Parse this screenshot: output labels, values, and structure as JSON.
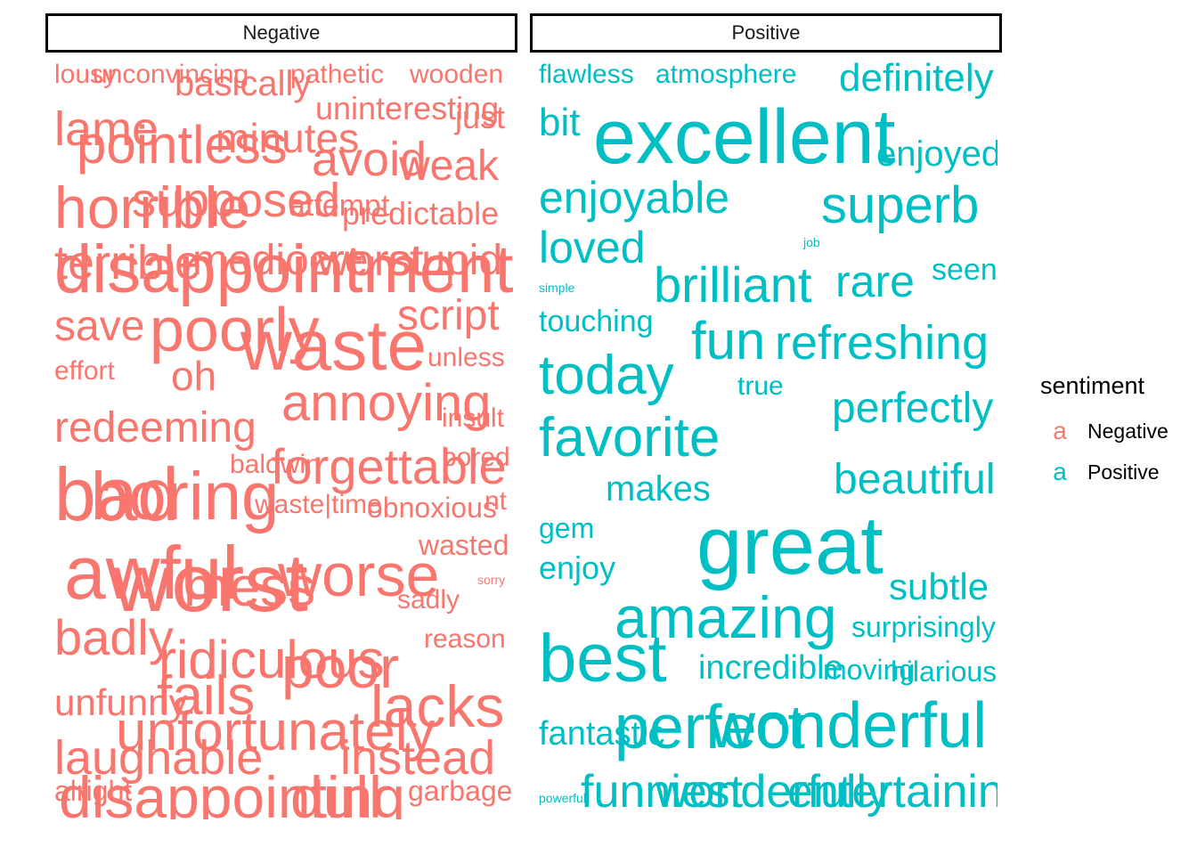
{
  "chart_data": {
    "type": "wordcloud",
    "panels": [
      "Negative",
      "Positive"
    ],
    "legend": {
      "title": "sentiment",
      "key_glyph": "a",
      "entries": [
        {
          "label": "Negative",
          "color": "#F8766D"
        },
        {
          "label": "Positive",
          "color": "#00BFC4"
        }
      ]
    },
    "words": {
      "Negative": [
        {
          "word": "lousy",
          "size": 30
        },
        {
          "word": "unconvincing",
          "size": 30
        },
        {
          "word": "basically",
          "size": 40
        },
        {
          "word": "pathetic",
          "size": 30
        },
        {
          "word": "wooden",
          "size": 30
        },
        {
          "word": "uninteresting",
          "size": 36
        },
        {
          "word": "just",
          "size": 36
        },
        {
          "word": "lame",
          "size": 54
        },
        {
          "word": "pointless",
          "size": 60
        },
        {
          "word": "minutes",
          "size": 46
        },
        {
          "word": "avoid",
          "size": 54
        },
        {
          "word": "weak",
          "size": 48
        },
        {
          "word": "horrible",
          "size": 66
        },
        {
          "word": "supposed",
          "size": 54
        },
        {
          "word": "attempt",
          "size": 34
        },
        {
          "word": "predictable",
          "size": 36
        },
        {
          "word": "terrible",
          "size": 54
        },
        {
          "word": "mediocre",
          "size": 48
        },
        {
          "word": "worst",
          "size": 50
        },
        {
          "word": "stupid",
          "size": 48
        },
        {
          "word": "disappointment",
          "size": 76
        },
        {
          "word": "save",
          "size": 48
        },
        {
          "word": "poorly",
          "size": 70
        },
        {
          "word": "script",
          "size": 48
        },
        {
          "word": "waste",
          "size": 80
        },
        {
          "word": "unless",
          "size": 30
        },
        {
          "word": "effort",
          "size": 30
        },
        {
          "word": "oh",
          "size": 46
        },
        {
          "word": "annoying",
          "size": 58
        },
        {
          "word": "insult",
          "size": 30
        },
        {
          "word": "redeeming",
          "size": 48
        },
        {
          "word": "forgettable",
          "size": 56
        },
        {
          "word": "baldwin",
          "size": 30
        },
        {
          "word": "bored",
          "size": 30
        },
        {
          "word": "bad",
          "size": 84
        },
        {
          "word": "boring",
          "size": 76
        },
        {
          "word": "waste|time",
          "size": 30
        },
        {
          "word": "obnoxious",
          "size": 32
        },
        {
          "word": "nt",
          "size": 30
        },
        {
          "word": "wasted",
          "size": 32
        },
        {
          "word": "awful",
          "size": 84
        },
        {
          "word": "worse",
          "size": 68
        },
        {
          "word": "worst",
          "size": 92
        },
        {
          "word": "mess",
          "size": 62
        },
        {
          "word": "sorry",
          "size": 14
        },
        {
          "word": "sadly",
          "size": 30
        },
        {
          "word": "badly",
          "size": 56
        },
        {
          "word": "ridiculous",
          "size": 60
        },
        {
          "word": "reason",
          "size": 30
        },
        {
          "word": "poor",
          "size": 66
        },
        {
          "word": "unfunny",
          "size": 42
        },
        {
          "word": "fails",
          "size": 62
        },
        {
          "word": "lacks",
          "size": 66
        },
        {
          "word": "unfortunately",
          "size": 62
        },
        {
          "word": "laughable",
          "size": 54
        },
        {
          "word": "instead",
          "size": 54
        },
        {
          "word": "disappointing",
          "size": 66
        },
        {
          "word": "dull",
          "size": 66
        },
        {
          "word": "alright",
          "size": 32
        },
        {
          "word": "garbage",
          "size": 32
        }
      ],
      "Positive": [
        {
          "word": "flawless",
          "size": 30
        },
        {
          "word": "atmosphere",
          "size": 30
        },
        {
          "word": "definitely",
          "size": 44
        },
        {
          "word": "bit",
          "size": 44
        },
        {
          "word": "excellent",
          "size": 86
        },
        {
          "word": "enjoyed",
          "size": 40
        },
        {
          "word": "enjoyable",
          "size": 50
        },
        {
          "word": "superb",
          "size": 58
        },
        {
          "word": "loved",
          "size": 50
        },
        {
          "word": "job",
          "size": 14
        },
        {
          "word": "brilliant",
          "size": 56
        },
        {
          "word": "rare",
          "size": 50
        },
        {
          "word": "seen",
          "size": 34
        },
        {
          "word": "simple",
          "size": 14
        },
        {
          "word": "touching",
          "size": 34
        },
        {
          "word": "fun",
          "size": 60
        },
        {
          "word": "refreshing",
          "size": 54
        },
        {
          "word": "today",
          "size": 62
        },
        {
          "word": "true",
          "size": 30
        },
        {
          "word": "perfectly",
          "size": 48
        },
        {
          "word": "favorite",
          "size": 62
        },
        {
          "word": "beautiful",
          "size": 48
        },
        {
          "word": "makes",
          "size": 40
        },
        {
          "word": "gem",
          "size": 32
        },
        {
          "word": "great",
          "size": 92
        },
        {
          "word": "enjoy",
          "size": 36
        },
        {
          "word": "subtle",
          "size": 42
        },
        {
          "word": "amazing",
          "size": 66
        },
        {
          "word": "surprisingly",
          "size": 32
        },
        {
          "word": "best",
          "size": 76
        },
        {
          "word": "incredible",
          "size": 38
        },
        {
          "word": "moving",
          "size": 32
        },
        {
          "word": "hilarious",
          "size": 32
        },
        {
          "word": "fantastic",
          "size": 38
        },
        {
          "word": "perfect",
          "size": 70
        },
        {
          "word": "wonderful",
          "size": 72
        },
        {
          "word": "powerful",
          "size": 14
        },
        {
          "word": "funniest",
          "size": 52
        },
        {
          "word": "wonderfully",
          "size": 52
        },
        {
          "word": "entertaining",
          "size": 52
        }
      ]
    }
  }
}
